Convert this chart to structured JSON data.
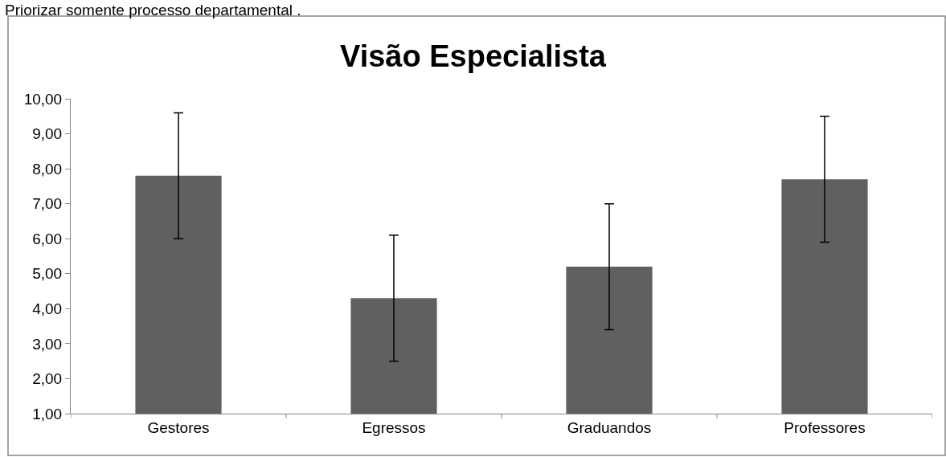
{
  "chart_data": {
    "type": "bar",
    "title": "Visão Especialista",
    "annotations": [
      "Priorizar somente processo departamental ."
    ],
    "categories": [
      "Gestores",
      "Egressos",
      "Graduandos",
      "Professores"
    ],
    "values": [
      7.8,
      4.3,
      5.2,
      7.7
    ],
    "errors": [
      1.8,
      1.8,
      1.8,
      1.8
    ],
    "color": "#606060",
    "ylim": [
      1,
      10
    ],
    "yticks": [
      {
        "value": 1,
        "label": "1,00"
      },
      {
        "value": 2,
        "label": "2,00"
      },
      {
        "value": 3,
        "label": "3,00"
      },
      {
        "value": 4,
        "label": "4,00"
      },
      {
        "value": 5,
        "label": "5,00"
      },
      {
        "value": 6,
        "label": "6,00"
      },
      {
        "value": 7,
        "label": "7,00"
      },
      {
        "value": 8,
        "label": "8,00"
      },
      {
        "value": 9,
        "label": "9,00"
      },
      {
        "value": 10,
        "label": "10,00"
      }
    ],
    "marker": "none"
  }
}
